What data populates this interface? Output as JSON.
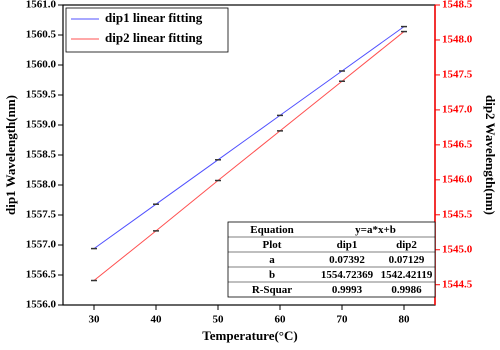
{
  "chart_data": {
    "type": "line",
    "x": [
      30,
      40,
      50,
      60,
      70,
      80
    ],
    "series": [
      {
        "name": "dip1 linear fitting",
        "color": "#5050ff",
        "values": [
          1556.94,
          1557.68,
          1558.42,
          1559.16,
          1559.9,
          1560.64
        ]
      },
      {
        "name": "dip2 linear fitting",
        "color": "#ff5050",
        "axis": "y2",
        "values": [
          1544.56,
          1545.27,
          1545.99,
          1546.7,
          1547.41,
          1548.12
        ]
      }
    ],
    "xlabel": "Temperature(°C)",
    "ylabel": "dip1 Wavelength(nm)",
    "y2label": "dip2 Wavelength(nm)",
    "xlim": [
      25,
      85
    ],
    "xticks": [
      30,
      40,
      50,
      60,
      70,
      80
    ],
    "ylim": [
      1556,
      1561
    ],
    "yticks": [
      {
        "value": 1556,
        "label": "1556.0"
      },
      {
        "value": 1556.5,
        "label": "1556.5"
      },
      {
        "value": 1557,
        "label": "1557.0"
      },
      {
        "value": 1557.5,
        "label": "1557.5"
      },
      {
        "value": 1558,
        "label": "1558.0"
      },
      {
        "value": 1558.5,
        "label": "1558.5"
      },
      {
        "value": 1559,
        "label": "1559.0"
      },
      {
        "value": 1559.5,
        "label": "1559.5"
      },
      {
        "value": 1560,
        "label": "1560.0"
      },
      {
        "value": 1560.5,
        "label": "1560.5"
      },
      {
        "value": 1561,
        "label": "1561.0"
      }
    ],
    "y2lim": [
      1544.21,
      1548.5
    ],
    "y2ticks": [
      1544.5,
      {
        "value": 1545,
        "label": "1545.0"
      },
      1545.5,
      {
        "value": 1546,
        "label": "1546.0"
      },
      1546.5,
      {
        "value": 1547,
        "label": "1547.0"
      },
      1547.5,
      {
        "value": 1548,
        "label": "1548.0"
      },
      1548.5
    ],
    "y2color": "#ff0000",
    "legend": "top-left",
    "table": {
      "rows": [
        [
          "Equation",
          "y=a*x+b"
        ],
        [
          "Plot",
          "dip1",
          "dip2"
        ],
        [
          "a",
          "0.07392",
          "0.07129"
        ],
        [
          "b",
          "1554.72369",
          "1542.42119"
        ],
        [
          "R-Squar",
          "0.9993",
          "0.9986"
        ]
      ]
    }
  }
}
